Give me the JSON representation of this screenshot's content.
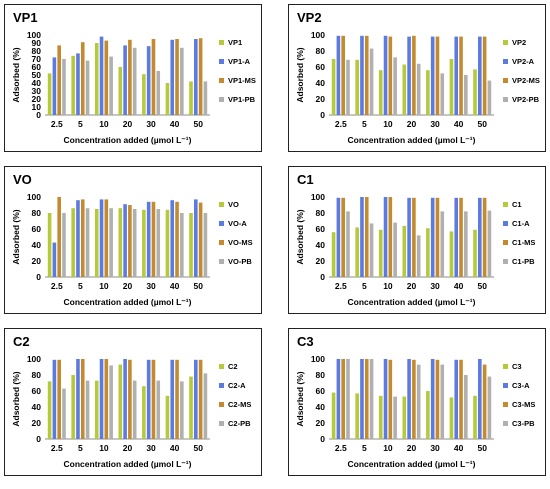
{
  "colors": {
    "A": "#b5c93a",
    "B": "#5b7be0",
    "C": "#c38a2e",
    "D": "#b0b0b0"
  },
  "shared": {
    "categories": [
      "2.5",
      "5",
      "10",
      "20",
      "30",
      "40",
      "50"
    ],
    "xlabel": "Concentration added (µmol L⁻¹)",
    "ylabel": "Adsorbed (%)",
    "ylim": [
      0,
      100
    ],
    "yticks": [
      "0",
      "20",
      "40",
      "60",
      "80",
      "100"
    ],
    "yticks_partial": [
      "0",
      "10",
      "20",
      "30",
      "40",
      "50",
      "60",
      "70",
      "80",
      "90",
      "100"
    ]
  },
  "chart_data": [
    {
      "type": "bar",
      "title": "VP1",
      "legend_position": "right",
      "categories": [
        "2.5",
        "5",
        "10",
        "20",
        "30",
        "40",
        "50"
      ],
      "series": [
        {
          "name": "VP1",
          "values": [
            52,
            74,
            90,
            60,
            51,
            40,
            42
          ]
        },
        {
          "name": "VP1-A",
          "values": [
            72,
            77,
            98,
            87,
            86,
            94,
            95
          ]
        },
        {
          "name": "VP1-MS",
          "values": [
            87,
            91,
            93,
            94,
            95,
            95,
            96
          ]
        },
        {
          "name": "VP1-PB",
          "values": [
            70,
            68,
            73,
            84,
            55,
            84,
            42
          ]
        }
      ]
    },
    {
      "type": "bar",
      "title": "VP2",
      "legend_position": "right",
      "categories": [
        "2.5",
        "5",
        "10",
        "20",
        "30",
        "40",
        "50"
      ],
      "series": [
        {
          "name": "VP2",
          "values": [
            70,
            69,
            56,
            63,
            56,
            70,
            57
          ]
        },
        {
          "name": "VP2-A",
          "values": [
            99,
            99,
            99,
            98,
            98,
            98,
            98
          ]
        },
        {
          "name": "VP2-MS",
          "values": [
            99,
            99,
            98,
            99,
            98,
            98,
            98
          ]
        },
        {
          "name": "VP2-PB",
          "values": [
            69,
            83,
            72,
            64,
            52,
            50,
            43
          ]
        }
      ]
    },
    {
      "type": "bar",
      "title": "VO",
      "legend_position": "right",
      "categories": [
        "2.5",
        "5",
        "10",
        "20",
        "30",
        "40",
        "50"
      ],
      "series": [
        {
          "name": "VO",
          "values": [
            80,
            86,
            85,
            86,
            84,
            84,
            80
          ]
        },
        {
          "name": "VO-A",
          "values": [
            43,
            96,
            97,
            91,
            94,
            96,
            97
          ]
        },
        {
          "name": "VO-MS",
          "values": [
            100,
            97,
            97,
            90,
            94,
            94,
            93
          ]
        },
        {
          "name": "VO-PB",
          "values": [
            80,
            86,
            86,
            85,
            85,
            80,
            80
          ]
        }
      ]
    },
    {
      "type": "bar",
      "title": "C1",
      "legend_position": "right",
      "categories": [
        "2.5",
        "5",
        "10",
        "20",
        "30",
        "40",
        "50"
      ],
      "series": [
        {
          "name": "C1",
          "values": [
            56,
            62,
            59,
            64,
            61,
            57,
            59
          ]
        },
        {
          "name": "C1-A",
          "values": [
            99,
            100,
            100,
            99,
            99,
            99,
            99
          ]
        },
        {
          "name": "C1-MS",
          "values": [
            99,
            100,
            100,
            99,
            99,
            99,
            99
          ]
        },
        {
          "name": "C1-PB",
          "values": [
            82,
            67,
            68,
            52,
            82,
            82,
            83
          ]
        }
      ]
    },
    {
      "type": "bar",
      "title": "C2",
      "legend_position": "right",
      "categories": [
        "2.5",
        "5",
        "10",
        "20",
        "30",
        "40",
        "50"
      ],
      "series": [
        {
          "name": "C2",
          "values": [
            72,
            80,
            73,
            93,
            66,
            54,
            78
          ]
        },
        {
          "name": "C2-A",
          "values": [
            99,
            100,
            100,
            100,
            99,
            99,
            99
          ]
        },
        {
          "name": "C2-MS",
          "values": [
            99,
            100,
            100,
            99,
            99,
            99,
            99
          ]
        },
        {
          "name": "C2-PB",
          "values": [
            63,
            73,
            92,
            73,
            73,
            72,
            82
          ]
        }
      ]
    },
    {
      "type": "bar",
      "title": "C3",
      "legend_position": "right",
      "categories": [
        "2.5",
        "5",
        "10",
        "20",
        "30",
        "40",
        "50"
      ],
      "series": [
        {
          "name": "C3",
          "values": [
            58,
            57,
            54,
            53,
            60,
            52,
            54
          ]
        },
        {
          "name": "C3-A",
          "values": [
            100,
            100,
            100,
            100,
            100,
            99,
            100
          ]
        },
        {
          "name": "C3-MS",
          "values": [
            100,
            100,
            99,
            99,
            99,
            99,
            93
          ]
        },
        {
          "name": "C3-PB",
          "values": [
            100,
            100,
            53,
            93,
            93,
            80,
            78
          ]
        }
      ]
    }
  ]
}
